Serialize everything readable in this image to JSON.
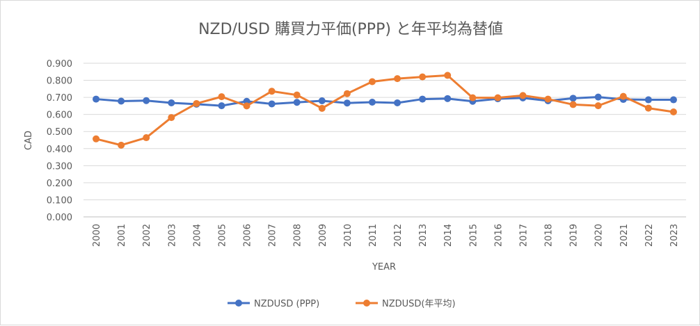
{
  "chart_data": {
    "type": "line",
    "title": "NZD/USD 購買力平価(PPP) と年平均為替値",
    "xlabel": "YEAR",
    "ylabel": "CAD",
    "ylim": [
      0,
      0.9
    ],
    "ytick_step": 0.1,
    "ytick_labels": [
      "0.000",
      "0.100",
      "0.200",
      "0.300",
      "0.400",
      "0.500",
      "0.600",
      "0.700",
      "0.800",
      "0.900"
    ],
    "grid": true,
    "legend_position": "bottom",
    "categories": [
      "2000",
      "2001",
      "2002",
      "2003",
      "2004",
      "2005",
      "2006",
      "2007",
      "2008",
      "2009",
      "2010",
      "2011",
      "2012",
      "2013",
      "2014",
      "2015",
      "2016",
      "2017",
      "2018",
      "2019",
      "2020",
      "2021",
      "2022",
      "2023"
    ],
    "series": [
      {
        "name": "NZDUSD (PPP)",
        "color": "#4472c4",
        "values": [
          0.69,
          0.678,
          0.681,
          0.668,
          0.66,
          0.651,
          0.677,
          0.662,
          0.671,
          0.68,
          0.667,
          0.672,
          0.668,
          0.69,
          0.693,
          0.677,
          0.692,
          0.697,
          0.68,
          0.695,
          0.702,
          0.688,
          0.686,
          0.686
        ]
      },
      {
        "name": "NZDUSD(年平均)",
        "color": "#ed7d31",
        "values": [
          0.457,
          0.42,
          0.464,
          0.582,
          0.664,
          0.704,
          0.65,
          0.736,
          0.714,
          0.636,
          0.722,
          0.792,
          0.81,
          0.82,
          0.829,
          0.698,
          0.698,
          0.711,
          0.69,
          0.658,
          0.651,
          0.706,
          0.637,
          0.615
        ]
      }
    ]
  }
}
